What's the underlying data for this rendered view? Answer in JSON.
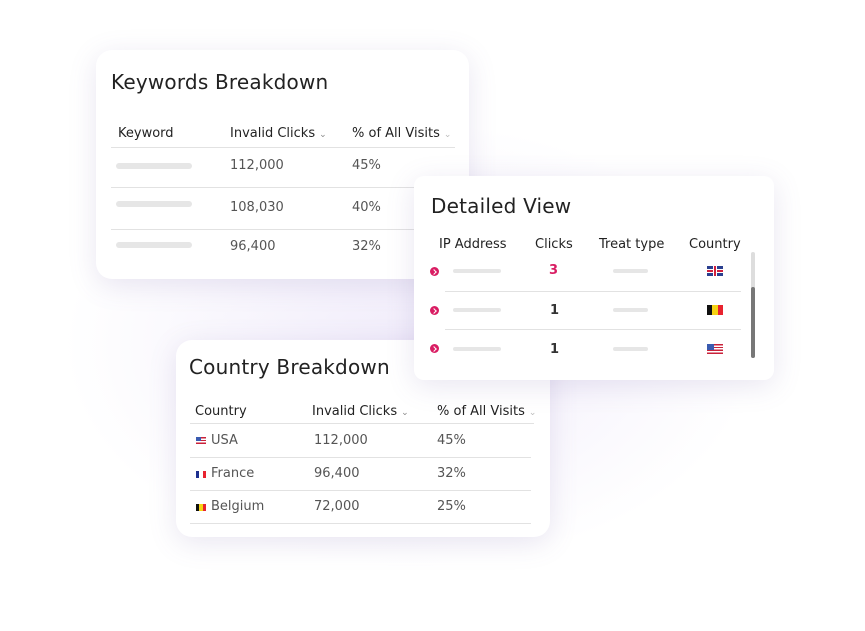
{
  "keywords": {
    "title": "Keywords Breakdown",
    "headers": [
      "Keyword",
      "Invalid Clicks",
      "% of All Visits"
    ],
    "rows": [
      {
        "clicks": "112,000",
        "pct": "45%"
      },
      {
        "clicks": "108,030",
        "pct": "40%"
      },
      {
        "clicks": "96,400",
        "pct": "32%"
      }
    ]
  },
  "detailed": {
    "title": "Detailed View",
    "headers": [
      "IP Address",
      "Clicks",
      "Treat type",
      "Country"
    ],
    "rows": [
      {
        "clicks": "3",
        "flag": "uk-flag"
      },
      {
        "clicks": "1",
        "flag": "belgium-flag"
      },
      {
        "clicks": "1",
        "flag": "usa-flag"
      }
    ],
    "accent": "#d91d63"
  },
  "country": {
    "title": "Country Breakdown",
    "headers": [
      "Country",
      "Invalid Clicks",
      "% of All Visits"
    ],
    "rows": [
      {
        "country": "USA",
        "clicks": "112,000",
        "pct": "45%"
      },
      {
        "country": "France",
        "clicks": "96,400",
        "pct": "32%"
      },
      {
        "country": "Belgium",
        "clicks": "72,000",
        "pct": "25%"
      }
    ]
  }
}
